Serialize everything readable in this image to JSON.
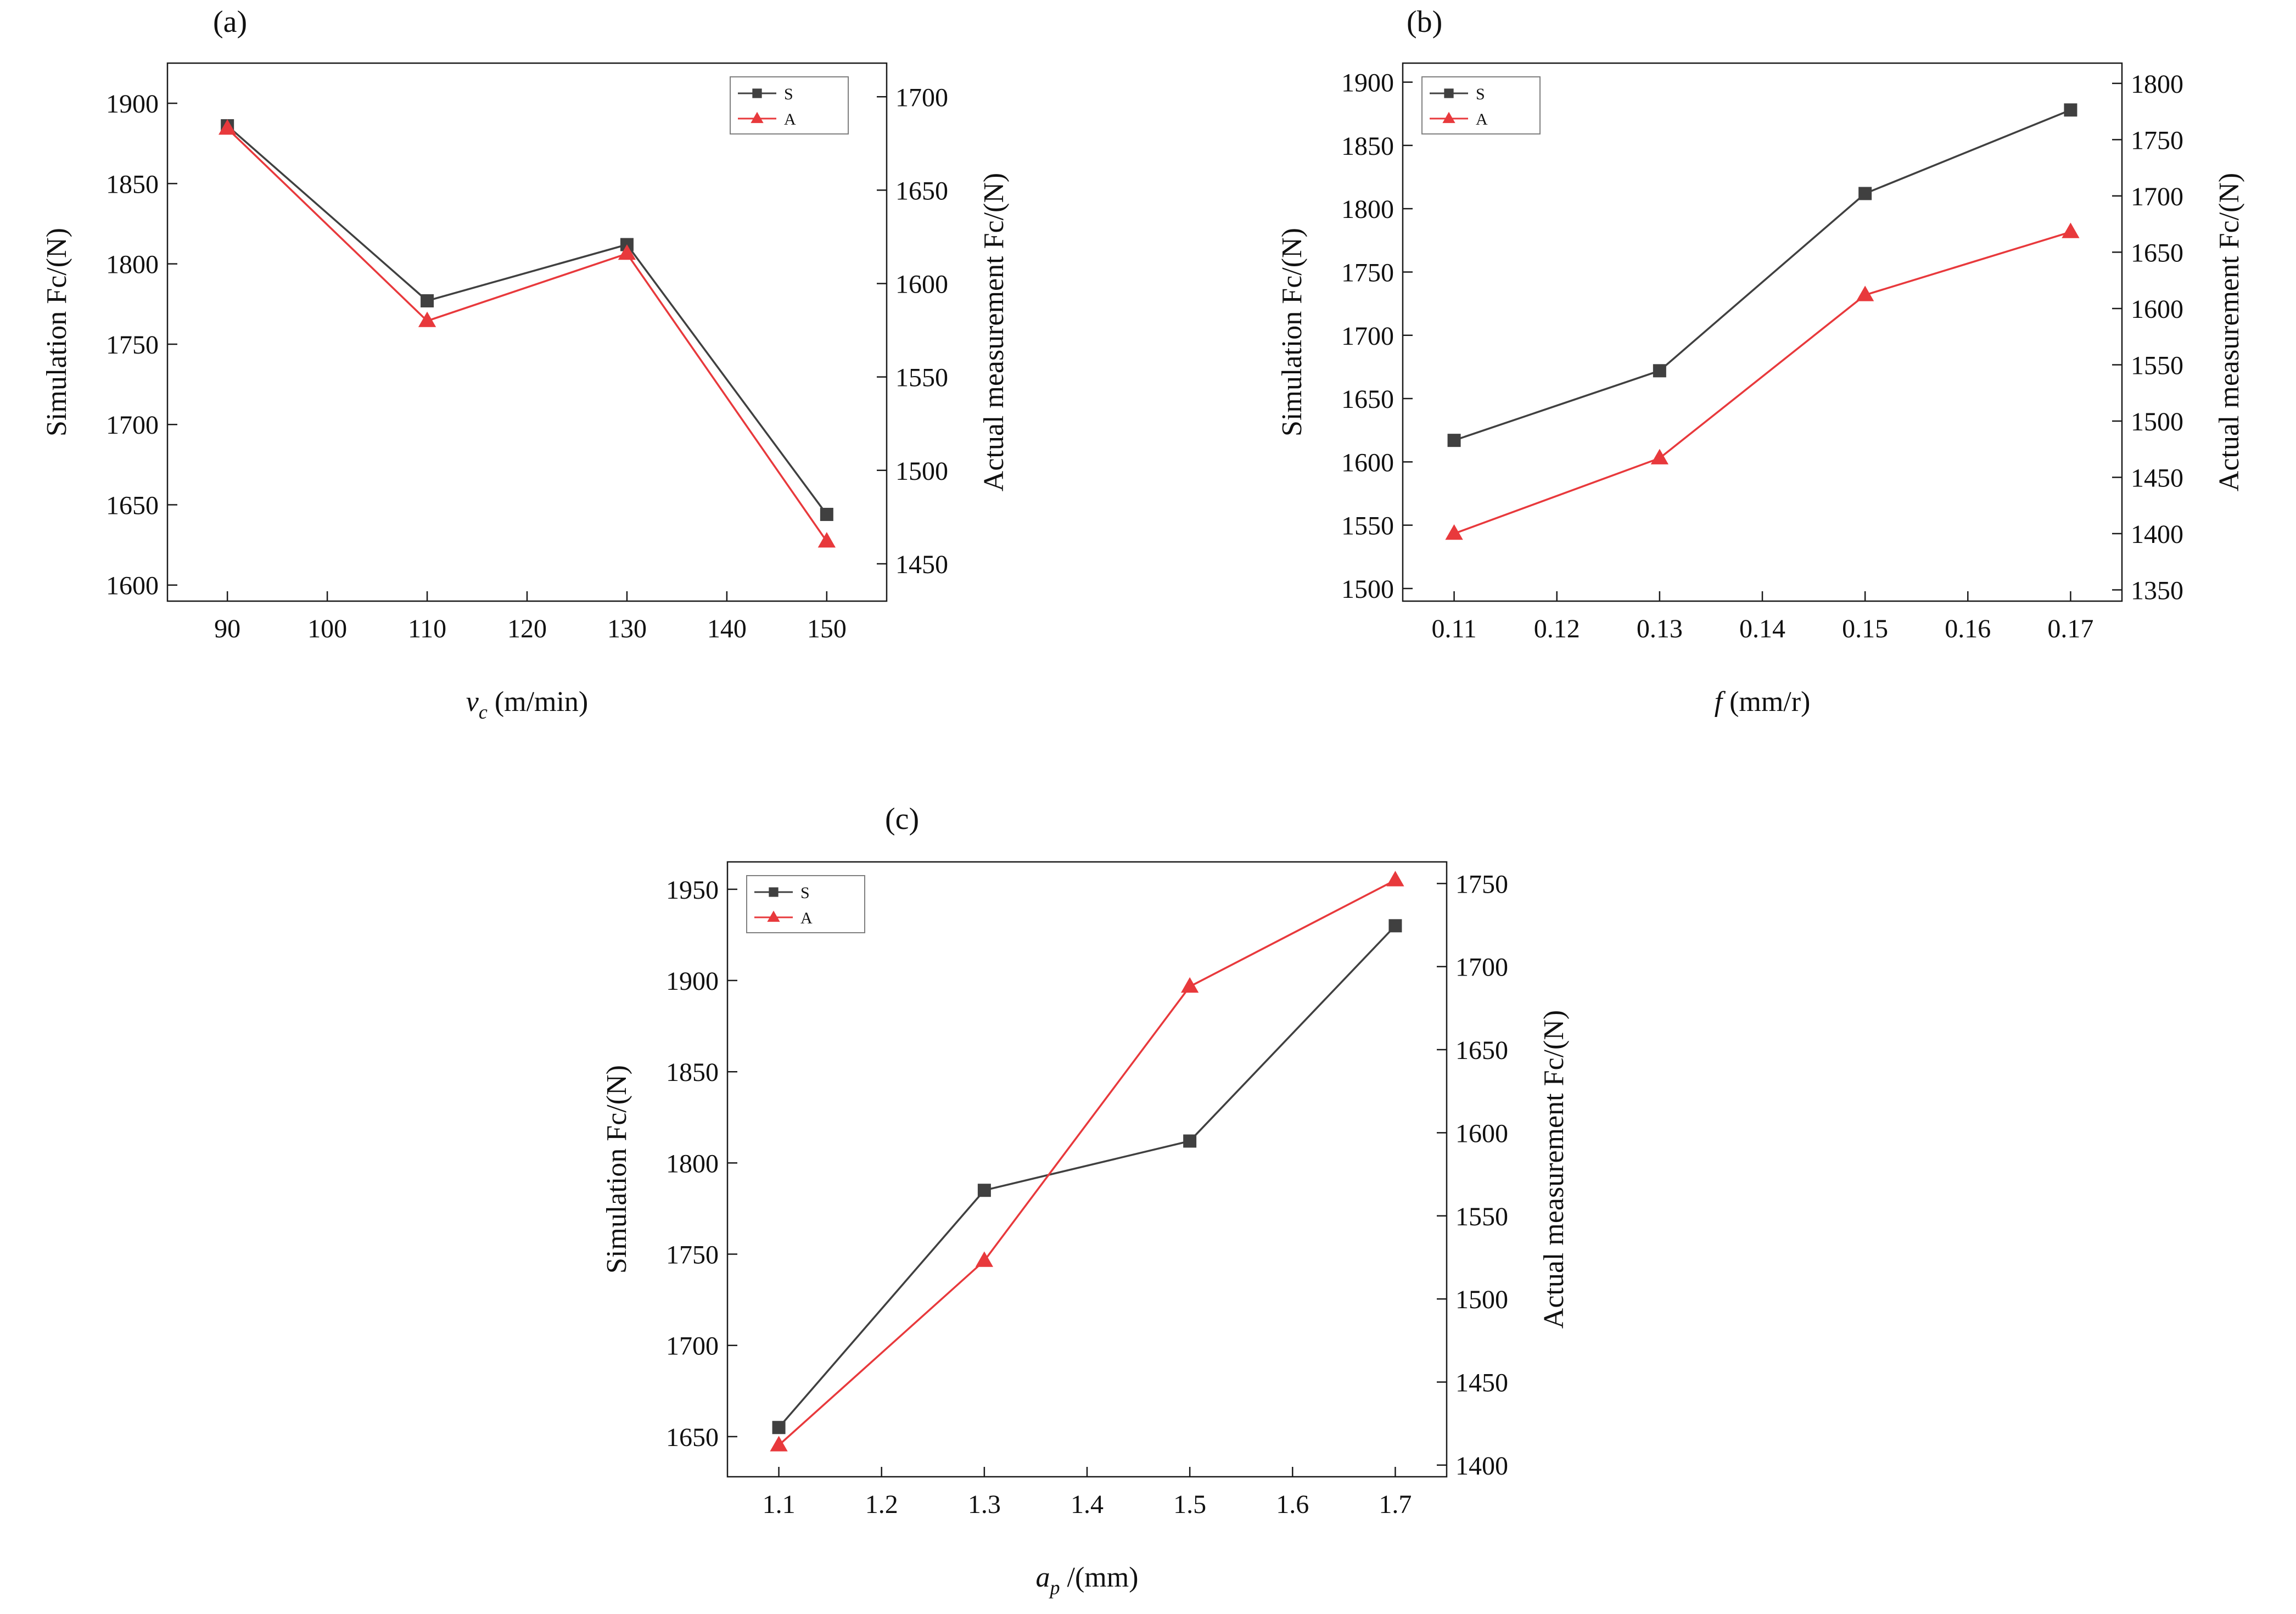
{
  "figure": {
    "background": "#ffffff"
  },
  "colors": {
    "simulation": "#404040",
    "actual": "#e8393c",
    "axis": "#1a1a1a",
    "legend_border": "#7f7f7f"
  },
  "chart_data": [
    {
      "id": "a",
      "panel_label": "(a)",
      "type": "line",
      "xlabel": {
        "base": "v",
        "sub": "c",
        "rest": " (m/min)"
      },
      "ylabel_left": "Simulation Fc/(N)",
      "ylabel_right": "Actual measurement Fc/(N)",
      "x": [
        90,
        110,
        130,
        150
      ],
      "xtick_labels": [
        "90",
        "100",
        "110",
        "120",
        "130",
        "140",
        "150"
      ],
      "xlim": [
        84,
        156
      ],
      "left_axis": {
        "ticks": [
          1600,
          1650,
          1700,
          1750,
          1800,
          1850,
          1900
        ],
        "lim": [
          1590,
          1925
        ]
      },
      "right_axis": {
        "ticks": [
          1450,
          1500,
          1550,
          1600,
          1650,
          1700
        ],
        "lim": [
          1430,
          1718
        ]
      },
      "series": [
        {
          "name": "S",
          "axis": "left",
          "marker": "square",
          "color_key": "simulation",
          "values": [
            1886,
            1777,
            1812,
            1644
          ]
        },
        {
          "name": "A",
          "axis": "right",
          "marker": "triangle",
          "color_key": "actual",
          "values": [
            1683,
            1580,
            1616,
            1462
          ]
        }
      ],
      "legend": {
        "position": "top-right",
        "labels": [
          "S",
          "A"
        ]
      }
    },
    {
      "id": "b",
      "panel_label": "(b)",
      "type": "line",
      "xlabel": {
        "base": "f",
        "sub": "",
        "rest": " (mm/r)"
      },
      "ylabel_left": "Simulation Fc/(N)",
      "ylabel_right": "Actual measurement Fc/(N)",
      "x": [
        0.11,
        0.13,
        0.15,
        0.17
      ],
      "xtick_labels": [
        "0.11",
        "0.12",
        "0.13",
        "0.14",
        "0.15",
        "0.16",
        "0.17"
      ],
      "xlim": [
        0.105,
        0.175
      ],
      "left_axis": {
        "ticks": [
          1500,
          1550,
          1600,
          1650,
          1700,
          1750,
          1800,
          1850,
          1900
        ],
        "lim": [
          1490,
          1915
        ]
      },
      "right_axis": {
        "ticks": [
          1350,
          1400,
          1450,
          1500,
          1550,
          1600,
          1650,
          1700,
          1750,
          1800
        ],
        "lim": [
          1340,
          1818
        ]
      },
      "series": [
        {
          "name": "S",
          "axis": "left",
          "marker": "square",
          "color_key": "simulation",
          "values": [
            1617,
            1672,
            1812,
            1878
          ]
        },
        {
          "name": "A",
          "axis": "right",
          "marker": "triangle",
          "color_key": "actual",
          "values": [
            1400,
            1467,
            1612,
            1668
          ]
        }
      ],
      "legend": {
        "position": "top-left",
        "labels": [
          "S",
          "A"
        ]
      }
    },
    {
      "id": "c",
      "panel_label": "(c)",
      "type": "line",
      "xlabel": {
        "base": "a",
        "sub": "p",
        "rest": " /(mm)"
      },
      "ylabel_left": "Simulation Fc/(N)",
      "ylabel_right": "Actual measurement Fc/(N)",
      "x": [
        1.1,
        1.3,
        1.5,
        1.7
      ],
      "xtick_labels": [
        "1.1",
        "1.2",
        "1.3",
        "1.4",
        "1.5",
        "1.6",
        "1.7"
      ],
      "xlim": [
        1.05,
        1.75
      ],
      "left_axis": {
        "ticks": [
          1650,
          1700,
          1750,
          1800,
          1850,
          1900,
          1950
        ],
        "lim": [
          1628,
          1965
        ]
      },
      "right_axis": {
        "ticks": [
          1400,
          1450,
          1500,
          1550,
          1600,
          1650,
          1700,
          1750
        ],
        "lim": [
          1393,
          1763
        ]
      },
      "series": [
        {
          "name": "S",
          "axis": "left",
          "marker": "square",
          "color_key": "simulation",
          "values": [
            1655,
            1785,
            1812,
            1930
          ]
        },
        {
          "name": "A",
          "axis": "right",
          "marker": "triangle",
          "color_key": "actual",
          "values": [
            1412,
            1523,
            1688,
            1752
          ]
        }
      ],
      "legend": {
        "position": "top-left",
        "labels": [
          "S",
          "A"
        ]
      }
    }
  ]
}
